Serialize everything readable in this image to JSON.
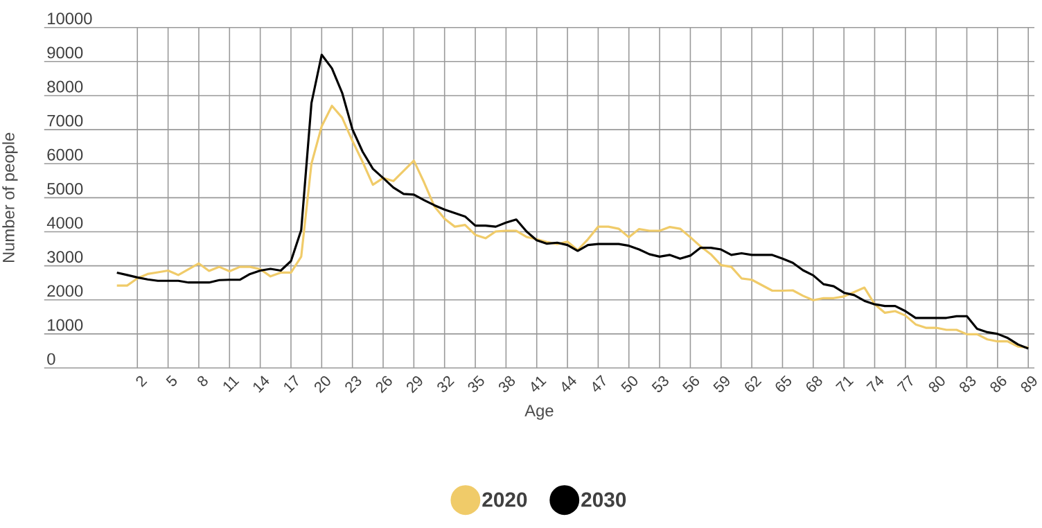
{
  "chart_data": {
    "type": "line",
    "xlabel": "Age",
    "ylabel": "Number of people",
    "x": [
      0,
      1,
      2,
      3,
      4,
      5,
      6,
      7,
      8,
      9,
      10,
      11,
      12,
      13,
      14,
      15,
      16,
      17,
      18,
      19,
      20,
      21,
      22,
      23,
      24,
      25,
      26,
      27,
      28,
      29,
      30,
      31,
      32,
      33,
      34,
      35,
      36,
      37,
      38,
      39,
      40,
      41,
      42,
      43,
      44,
      45,
      46,
      47,
      48,
      49,
      50,
      51,
      52,
      53,
      54,
      55,
      56,
      57,
      58,
      59,
      60,
      61,
      62,
      63,
      64,
      65,
      66,
      67,
      68,
      69,
      70,
      71,
      72,
      73,
      74,
      75,
      76,
      77,
      78,
      79,
      80,
      81,
      82,
      83,
      84,
      85,
      86,
      87,
      88,
      89
    ],
    "series": [
      {
        "name": "2020",
        "color": "#f0cb69",
        "values": [
          2420,
          2420,
          2630,
          2760,
          2810,
          2860,
          2730,
          2900,
          3070,
          2850,
          2970,
          2840,
          2970,
          2970,
          2900,
          2690,
          2800,
          2800,
          3270,
          6000,
          7100,
          7700,
          7350,
          6670,
          6050,
          5380,
          5580,
          5490,
          5790,
          6090,
          5450,
          4750,
          4380,
          4150,
          4200,
          3910,
          3810,
          4010,
          4030,
          4030,
          3850,
          3780,
          3700,
          3640,
          3710,
          3460,
          3780,
          4150,
          4150,
          4090,
          3840,
          4080,
          4030,
          4030,
          4140,
          4090,
          3840,
          3570,
          3340,
          3020,
          2970,
          2630,
          2590,
          2430,
          2270,
          2270,
          2280,
          2120,
          1990,
          2050,
          2050,
          2100,
          2230,
          2360,
          1870,
          1620,
          1670,
          1540,
          1280,
          1180,
          1180,
          1120,
          1120,
          990,
          990,
          840,
          780,
          780,
          630,
          600
        ]
      },
      {
        "name": "2030",
        "color": "#000000",
        "values": [
          2800,
          2730,
          2660,
          2600,
          2560,
          2560,
          2560,
          2510,
          2510,
          2510,
          2580,
          2590,
          2590,
          2760,
          2860,
          2910,
          2860,
          3140,
          4050,
          7780,
          9200,
          8800,
          8080,
          7010,
          6350,
          5850,
          5580,
          5300,
          5110,
          5090,
          4930,
          4780,
          4650,
          4550,
          4450,
          4180,
          4180,
          4150,
          4270,
          4360,
          4010,
          3750,
          3650,
          3680,
          3610,
          3440,
          3610,
          3640,
          3640,
          3640,
          3590,
          3480,
          3340,
          3270,
          3320,
          3210,
          3300,
          3530,
          3530,
          3480,
          3320,
          3370,
          3320,
          3320,
          3320,
          3210,
          3090,
          2870,
          2720,
          2460,
          2400,
          2210,
          2140,
          1970,
          1870,
          1820,
          1820,
          1670,
          1470,
          1470,
          1470,
          1470,
          1520,
          1520,
          1150,
          1050,
          1000,
          880,
          690,
          570
        ]
      }
    ],
    "xlim": [
      -7.1,
      89.6
    ],
    "ylim": [
      0,
      10000
    ],
    "xticks": [
      2,
      5,
      8,
      11,
      14,
      17,
      20,
      23,
      26,
      29,
      32,
      35,
      38,
      41,
      44,
      47,
      50,
      53,
      56,
      59,
      62,
      65,
      68,
      71,
      74,
      77,
      80,
      83,
      86,
      89
    ],
    "yticks": [
      0,
      1000,
      2000,
      3000,
      4000,
      5000,
      6000,
      7000,
      8000,
      9000,
      10000
    ],
    "grid": true,
    "legend": "bottom",
    "marker": "none",
    "line_style": "solid"
  }
}
